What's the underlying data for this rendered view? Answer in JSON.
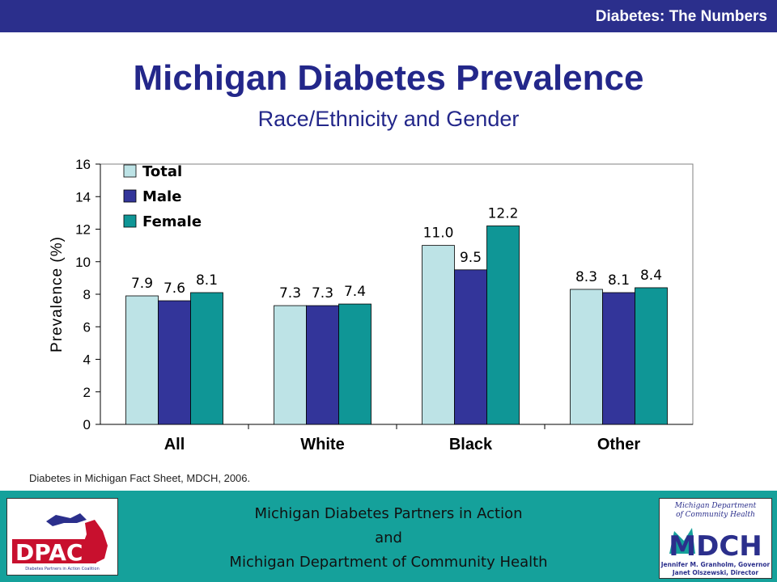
{
  "header": {
    "section_title": "Diabetes: The Numbers"
  },
  "title": "Michigan Diabetes Prevalence",
  "subtitle": "Race/Ethnicity and Gender",
  "source_note": "Diabetes in Michigan Fact Sheet, MDCH, 2006.",
  "footer": {
    "line1": "Michigan Diabetes Partners in Action",
    "line2": "and",
    "line3": "Michigan Department of Community Health"
  },
  "logos": {
    "dpac": {
      "text": "DPAC",
      "tagline": "Diabetes Partners in Action Coalition"
    },
    "mdch": {
      "top_line1": "Michigan Department",
      "top_line2": "of Community Health",
      "text": "MDCH",
      "bottom_line1": "Jennifer M. Granholm, Governor",
      "bottom_line2": "Janet Olszewski, Director"
    }
  },
  "colors": {
    "header_bar": "#2b2f8c",
    "title": "#23278a",
    "footer": "#15a19b",
    "total": "#bde3e6",
    "male": "#33359a",
    "female": "#0f9696"
  },
  "chart_data": {
    "type": "bar",
    "categories": [
      "All",
      "White",
      "Black",
      "Other"
    ],
    "series": [
      {
        "name": "Total",
        "values": [
          7.9,
          7.3,
          11.0,
          8.3
        ],
        "labels": [
          "7.9",
          "7.3",
          "11.0",
          "8.3"
        ],
        "color": "#bde3e6"
      },
      {
        "name": "Male",
        "values": [
          7.6,
          7.3,
          9.5,
          8.1
        ],
        "labels": [
          "7.6",
          "7.3",
          "9.5",
          "8.1"
        ],
        "color": "#33359a"
      },
      {
        "name": "Female",
        "values": [
          8.1,
          7.4,
          12.2,
          8.4
        ],
        "labels": [
          "8.1",
          "7.4",
          "12.2",
          "8.4"
        ],
        "color": "#0f9696"
      }
    ],
    "ylabel": "Prevalence (%)",
    "xlabel": "",
    "ylim": [
      0,
      16
    ],
    "yticks": [
      0,
      2,
      4,
      6,
      8,
      10,
      12,
      14,
      16
    ],
    "grid": false,
    "legend": "top-left"
  }
}
